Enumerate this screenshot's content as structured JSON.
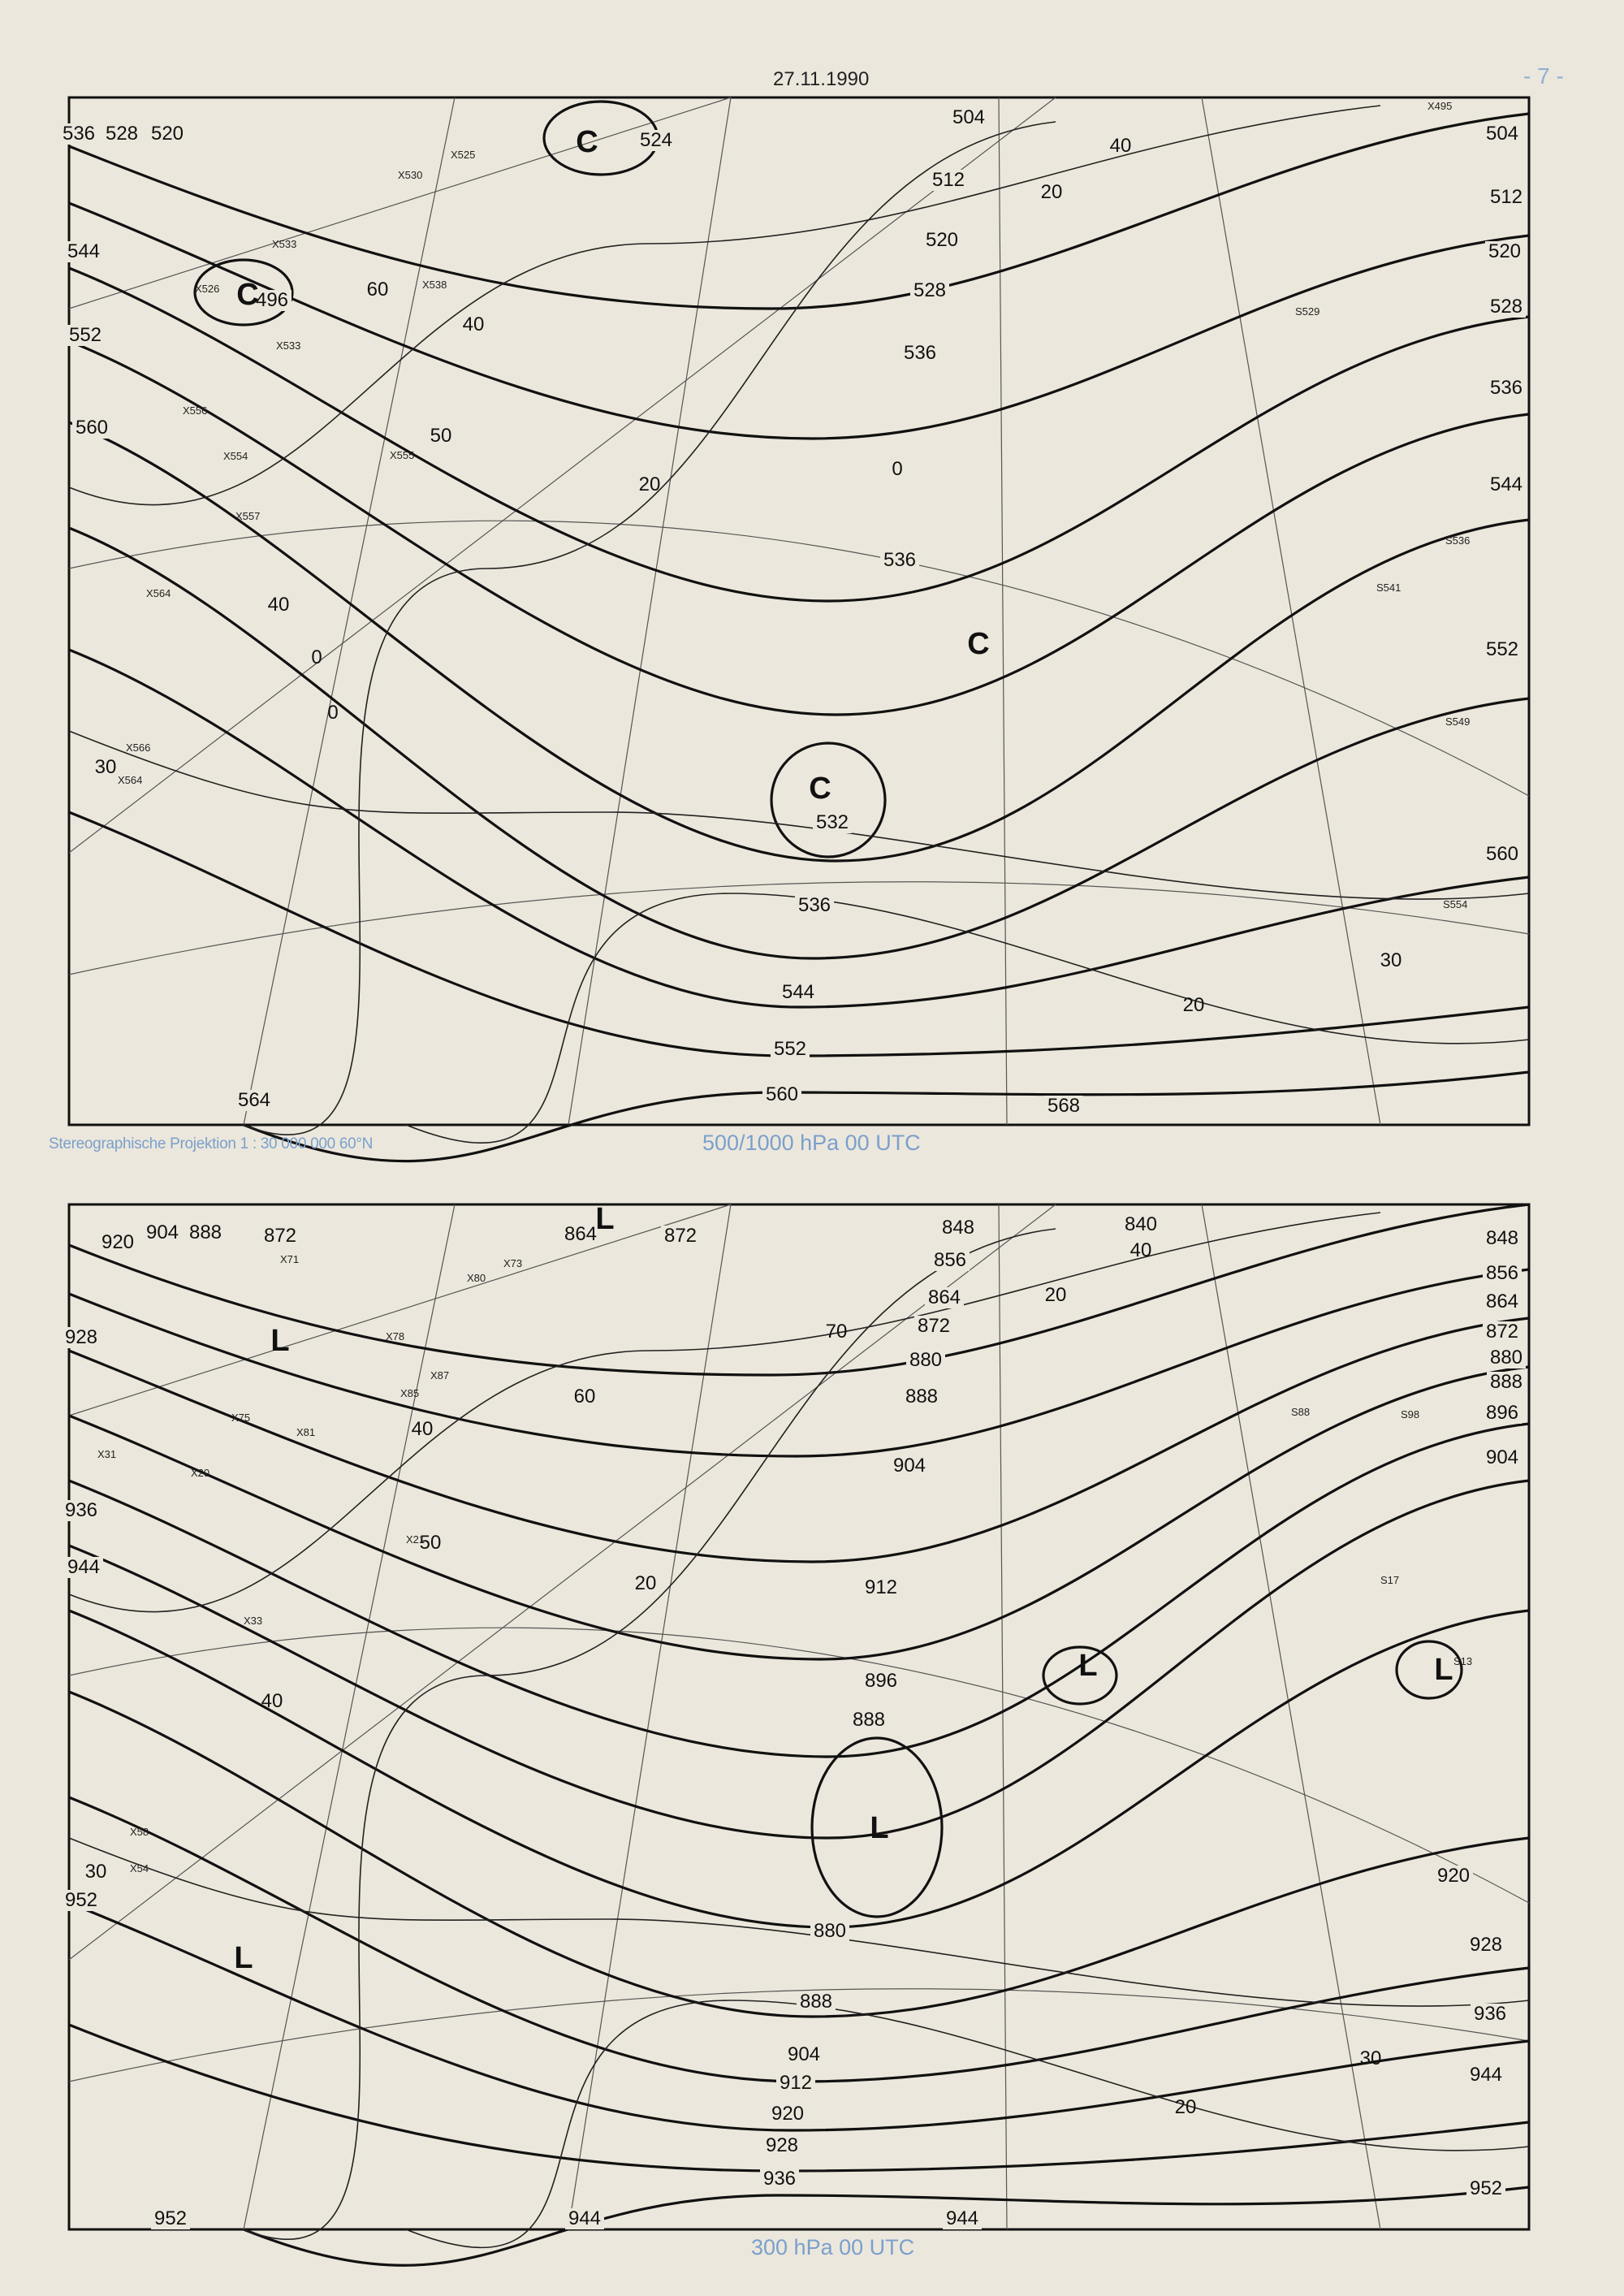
{
  "header": {
    "date": "27.11.1990",
    "page_number": "- 7 -"
  },
  "projection_caption": "Stereographische Projektion   1 : 30 000 000  60°N",
  "colors": {
    "caption_blue": "#7aa0cc",
    "paper": "#ece7dc",
    "ink": "#111111"
  },
  "top_map": {
    "title": "500/1000 hPa 00 UTC",
    "height_contour_labels": [
      "504",
      "512",
      "520",
      "528",
      "536",
      "536",
      "532",
      "536",
      "544",
      "552",
      "560",
      "568",
      "564",
      "552",
      "560",
      "544",
      "536",
      "528",
      "520",
      "524",
      "496",
      "504",
      "512",
      "520",
      "528",
      "536",
      "544",
      "552",
      "560"
    ],
    "thickness_labels": [
      "40",
      "20",
      "60",
      "40",
      "50",
      "20",
      "0",
      "40",
      "0",
      "0",
      "30",
      "30",
      "20"
    ],
    "low_symbols": [
      "C",
      "C",
      "C",
      "C"
    ],
    "station_samples": [
      "X525",
      "X530",
      "X533",
      "X538",
      "X526",
      "X533",
      "X556",
      "X554",
      "X555",
      "X557",
      "X564",
      "X566",
      "X564",
      "S529",
      "S536",
      "S541",
      "S549",
      "S554",
      "X495"
    ]
  },
  "bottom_map": {
    "title": "300 hPa 00 UTC",
    "height_contour_labels": [
      "920",
      "904",
      "888",
      "872",
      "864",
      "872",
      "848",
      "856",
      "864",
      "872",
      "880",
      "888",
      "904",
      "912",
      "896",
      "888",
      "880",
      "888",
      "904",
      "912",
      "920",
      "928",
      "936",
      "944",
      "944",
      "952",
      "928",
      "936",
      "944",
      "952",
      "840",
      "848",
      "856",
      "864",
      "872",
      "880",
      "888",
      "896",
      "904",
      "920",
      "928",
      "936",
      "944",
      "952"
    ],
    "isotach_labels": [
      "40",
      "20",
      "70",
      "60",
      "40",
      "50",
      "20",
      "40",
      "30",
      "30",
      "20"
    ],
    "low_symbols": [
      "L",
      "L",
      "L",
      "L",
      "L",
      "L"
    ],
    "station_samples": [
      "X73",
      "X80",
      "X78",
      "X87",
      "X85",
      "X81",
      "X75",
      "X71",
      "X31",
      "X20",
      "X21",
      "X33",
      "X58",
      "X54",
      "S88",
      "S98",
      "S17",
      "S13"
    ]
  }
}
